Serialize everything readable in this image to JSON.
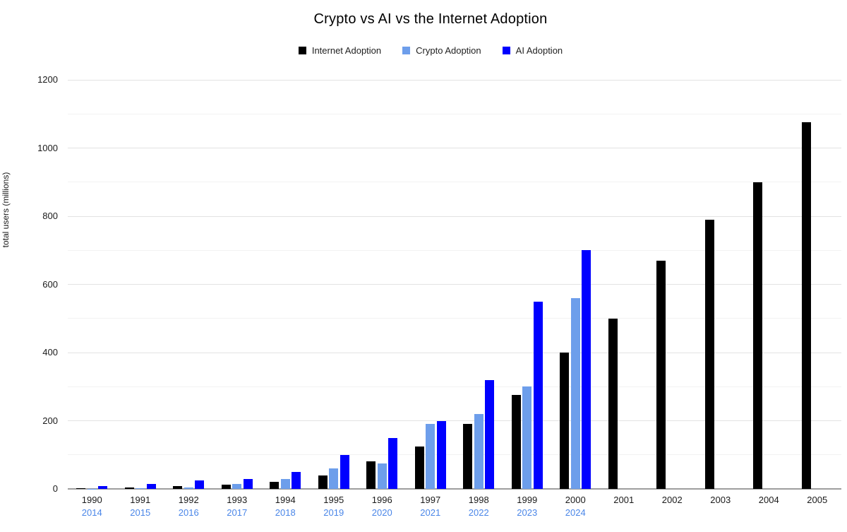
{
  "title": "Crypto vs AI vs the Internet Adoption",
  "y_axis": {
    "label": "total users (millions)",
    "ticks": [
      0,
      200,
      400,
      600,
      800,
      1000,
      1200
    ]
  },
  "chart_data": {
    "type": "bar",
    "title": "Crypto vs AI vs the Internet Adoption",
    "xlabel": "",
    "ylabel": "total users (millions)",
    "ylim": [
      0,
      1200
    ],
    "ytick_step": 200,
    "minor_grid_step": 100,
    "grid": true,
    "legend_position": "top",
    "categories": [
      "1990",
      "1991",
      "1992",
      "1993",
      "1994",
      "1995",
      "1996",
      "1997",
      "1998",
      "1999",
      "2000",
      "2001",
      "2002",
      "2003",
      "2004",
      "2005"
    ],
    "categories_secondary": [
      "2014",
      "2015",
      "2016",
      "2017",
      "2018",
      "2019",
      "2020",
      "2021",
      "2022",
      "2023",
      "2024",
      "",
      "",
      "",
      "",
      ""
    ],
    "series": [
      {
        "name": "Internet Adoption",
        "color": "#000000",
        "values": [
          3,
          5,
          8,
          12,
          20,
          40,
          80,
          125,
          190,
          275,
          400,
          500,
          670,
          790,
          900,
          1075
        ]
      },
      {
        "name": "Crypto Adoption",
        "color": "#6d9eeb",
        "values": [
          1,
          3,
          5,
          15,
          30,
          60,
          75,
          190,
          220,
          300,
          560,
          null,
          null,
          null,
          null,
          null
        ]
      },
      {
        "name": "AI Adoption",
        "color": "#0000ff",
        "values": [
          8,
          15,
          25,
          30,
          50,
          100,
          150,
          200,
          320,
          550,
          700,
          null,
          null,
          null,
          null,
          null
        ]
      }
    ]
  },
  "style": {
    "major_gridline_color": "#e3e3e3",
    "minor_gridline_color": "#f2f2f2",
    "baseline_color": "#9e9e9e",
    "primary_category_color": "#1a1a1a",
    "secondary_category_color": "#4a86e8"
  }
}
